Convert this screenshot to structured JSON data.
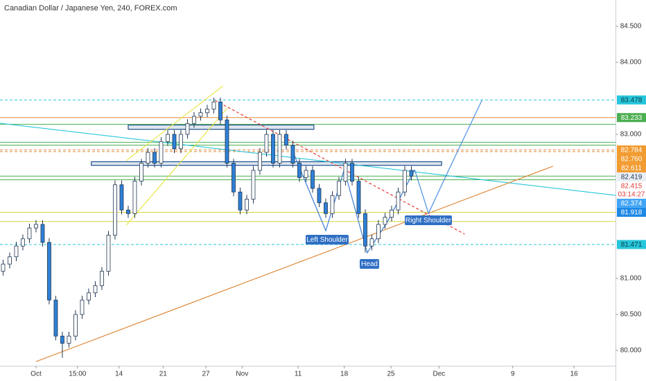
{
  "chart_data": {
    "type": "candlestick",
    "title": "Canadian Dollar / Japanese Yen, 240, FOREX.com",
    "xlim": [
      -5.47,
      88.0
    ],
    "ylim": [
      79.788,
      84.865
    ],
    "xticks": [
      {
        "value": 0,
        "label": "Oct"
      },
      {
        "value": 6.3,
        "label": "15:00"
      },
      {
        "value": 12.6,
        "label": "14"
      },
      {
        "value": 19.3,
        "label": "21"
      },
      {
        "value": 25.8,
        "label": "27"
      },
      {
        "value": 31.3,
        "label": "Nov"
      },
      {
        "value": 39.8,
        "label": "11"
      },
      {
        "value": 46.8,
        "label": "18"
      },
      {
        "value": 53.9,
        "label": "25"
      },
      {
        "value": 61.2,
        "label": "Dec"
      },
      {
        "value": 72.4,
        "label": "9"
      },
      {
        "value": 81.7,
        "label": "16"
      }
    ],
    "yticks": [
      {
        "value": 84.5,
        "label": "84.500"
      },
      {
        "value": 84,
        "label": "84.000"
      },
      {
        "value": 83,
        "label": "83.000"
      },
      {
        "value": 81,
        "label": "81.000"
      },
      {
        "value": 80.5,
        "label": "80.500"
      },
      {
        "value": 80,
        "label": "80.000"
      }
    ],
    "up_color": "#ffffff",
    "down_color": "#2f80d6",
    "wick_color": "#1f3550",
    "x": [
      -5,
      -4,
      -3,
      -2,
      -1,
      0,
      1,
      2,
      3,
      4,
      5,
      6,
      7,
      8,
      9,
      10,
      11,
      12,
      13,
      14,
      15,
      16,
      17,
      18,
      19,
      20,
      21,
      22,
      23,
      24,
      25,
      26,
      27,
      28,
      29,
      30,
      31,
      32,
      33,
      34,
      35,
      36,
      37,
      38,
      39,
      40,
      41,
      42,
      43,
      44,
      45,
      46,
      47,
      48,
      49,
      50,
      51,
      52,
      53,
      54,
      55,
      56,
      57
    ],
    "open": [
      81.1,
      81.2,
      81.3,
      81.45,
      81.55,
      81.7,
      81.75,
      81.5,
      80.7,
      80.2,
      80.1,
      80.2,
      80.5,
      80.7,
      80.8,
      80.9,
      81.1,
      81.6,
      82.3,
      81.95,
      81.9,
      82.35,
      82.6,
      82.75,
      82.6,
      82.9,
      83.0,
      82.8,
      83.0,
      83.15,
      83.25,
      83.3,
      83.35,
      83.45,
      83.2,
      82.6,
      82.2,
      81.95,
      82.1,
      82.5,
      82.75,
      83.0,
      82.6,
      83.0,
      82.85,
      82.6,
      82.4,
      82.5,
      82.25,
      82.05,
      81.9,
      82.15,
      82.35,
      82.6,
      82.35,
      81.9,
      81.45,
      81.55,
      81.75,
      81.85,
      81.95,
      82.2,
      82.5
    ],
    "high": [
      81.26,
      81.36,
      81.51,
      81.61,
      81.76,
      81.81,
      81.81,
      81.56,
      80.76,
      80.26,
      80.26,
      80.56,
      80.76,
      80.86,
      80.96,
      81.16,
      81.66,
      82.36,
      82.36,
      82.01,
      82.41,
      82.66,
      82.81,
      82.81,
      82.96,
      83.06,
      83.06,
      83.06,
      83.21,
      83.31,
      83.36,
      83.41,
      83.51,
      83.51,
      83.26,
      82.66,
      82.26,
      82.16,
      82.56,
      82.81,
      83.06,
      83.06,
      83.06,
      83.06,
      82.91,
      82.66,
      82.56,
      82.56,
      82.31,
      82.11,
      82.21,
      82.41,
      82.66,
      82.66,
      82.41,
      81.96,
      81.61,
      81.81,
      81.91,
      82.01,
      82.26,
      82.56,
      82.56
    ],
    "low": [
      81.04,
      81.14,
      81.24,
      81.39,
      81.49,
      81.64,
      81.44,
      80.64,
      80.14,
      79.9,
      80.04,
      80.14,
      80.44,
      80.64,
      80.74,
      80.84,
      81.04,
      81.54,
      81.89,
      81.84,
      81.84,
      82.29,
      82.54,
      82.54,
      82.54,
      82.84,
      82.74,
      82.74,
      82.94,
      83.09,
      83.19,
      83.24,
      83.29,
      83.14,
      82.54,
      82.14,
      81.89,
      81.89,
      82.04,
      82.44,
      82.69,
      82.54,
      82.54,
      82.79,
      82.54,
      82.34,
      82.34,
      82.19,
      81.99,
      81.84,
      81.84,
      82.09,
      82.29,
      82.29,
      81.84,
      81.36,
      81.39,
      81.49,
      81.69,
      81.79,
      81.89,
      82.14,
      82.36
    ],
    "close": [
      81.2,
      81.3,
      81.45,
      81.55,
      81.7,
      81.75,
      81.5,
      80.7,
      80.2,
      80.1,
      80.2,
      80.5,
      80.7,
      80.8,
      80.9,
      81.1,
      81.6,
      82.3,
      81.95,
      81.9,
      82.35,
      82.6,
      82.75,
      82.6,
      82.9,
      83.0,
      82.8,
      83.0,
      83.15,
      83.25,
      83.3,
      83.35,
      83.45,
      83.2,
      82.6,
      82.2,
      81.95,
      82.1,
      82.5,
      82.75,
      83.0,
      82.6,
      83.0,
      82.85,
      82.6,
      82.4,
      82.5,
      82.25,
      82.05,
      81.9,
      82.15,
      82.35,
      82.6,
      82.35,
      81.9,
      81.45,
      81.55,
      81.75,
      81.85,
      81.95,
      82.2,
      82.5,
      82.42
    ],
    "levels": [
      {
        "value": 83.478,
        "color": "#26c6da",
        "dash": true
      },
      {
        "value": 83.233,
        "color": "#e08a3c",
        "dash": false
      },
      {
        "value": 83.14,
        "color": "#4caf50",
        "dash": false
      },
      {
        "value": 82.89,
        "color": "#4caf50",
        "dash": false
      },
      {
        "value": 82.85,
        "color": "#4caf50",
        "dash": false
      },
      {
        "value": 82.784,
        "color": "#e08a3c",
        "dash": true
      },
      {
        "value": 82.76,
        "color": "#e08a3c",
        "dash": true
      },
      {
        "value": 82.42,
        "color": "#4caf50",
        "dash": false
      },
      {
        "value": 82.37,
        "color": "#4caf50",
        "dash": false
      },
      {
        "value": 81.918,
        "color": "#d4d43a",
        "dash": false
      },
      {
        "value": 81.79,
        "color": "#d4d43a",
        "dash": false
      },
      {
        "value": 81.471,
        "color": "#26c6da",
        "dash": true
      }
    ],
    "zones": [
      {
        "x": [
          14,
          42.2
        ],
        "y": [
          83.07,
          83.13
        ],
        "color": "#1e4f8c"
      },
      {
        "x": [
          8.4,
          61.6
        ],
        "y": [
          82.57,
          82.62
        ],
        "color": "#1e4f8c"
      }
    ],
    "lines": [
      {
        "x": [
          -5.47,
          88.0
        ],
        "y": [
          83.154,
          82.154
        ],
        "color": "#26c6da",
        "dash": false
      },
      {
        "x": [
          0,
          78.5
        ],
        "y": [
          79.846,
          82.558
        ],
        "color": "#e08a3c",
        "dash": false
      },
      {
        "x": [
          27.2,
          65.1
        ],
        "y": [
          83.471,
          81.615
        ],
        "color": "#e53935",
        "dash": true
      },
      {
        "x": [
          13.7,
          28.4
        ],
        "y": [
          82.635,
          83.673
        ],
        "color": "#e6e64a",
        "dash": false
      },
      {
        "x": [
          13.7,
          29.05
        ],
        "y": [
          81.74,
          83.365
        ],
        "color": "#e6e64a",
        "dash": false
      },
      {
        "x": [
          38.7,
          44,
          46.8,
          50.3,
          53.5,
          57.5
        ],
        "y": [
          82.827,
          81.663,
          82.51,
          81.356,
          81.808,
          82.51
        ],
        "color": "#3a7bd5",
        "dash": false
      },
      {
        "x": [
          57.5,
          59.6,
          62.7,
          67.7
        ],
        "y": [
          82.51,
          81.904,
          82.51,
          83.471
        ],
        "color": "#4a90e2",
        "dash": false
      }
    ],
    "annotations": [
      "Left Shoulder",
      "Head",
      "Right Shoulder"
    ],
    "price_labels": [
      {
        "value": 83.478,
        "label": "83.478",
        "color": "#26c6da",
        "text_color": "#0d3b4a"
      },
      {
        "value": 83.233,
        "label": "83.233",
        "color": "#4caf50",
        "text_color": "#ffffff"
      },
      {
        "value": 82.784,
        "label": "82.784",
        "color": "#f29b30",
        "text_color": "#ffffff"
      },
      {
        "value": 82.76,
        "label": "82.760",
        "color": "#f29b30",
        "text_color": "#ffffff"
      },
      {
        "value": 82.611,
        "label": "82.611",
        "color": "#f29b30",
        "text_color": "#ffffff"
      },
      {
        "value": 82.419,
        "label": "82.419",
        "color": "#e9eef3",
        "text_color": "#1f3550"
      },
      {
        "value": 82.415,
        "label": "82.415",
        "color": "#ffffff",
        "text_color": "#e53935"
      },
      {
        "value": 82.374,
        "label": "82.374",
        "color": "#42a5f5",
        "text_color": "#ffffff"
      },
      {
        "value": 81.918,
        "label": "81.918",
        "color": "#1e88e5",
        "text_color": "#ffffff"
      },
      {
        "value": 81.471,
        "label": "81.471",
        "color": "#26c6da",
        "text_color": "#0d3b4a"
      }
    ],
    "countdown": "03:14:27"
  }
}
